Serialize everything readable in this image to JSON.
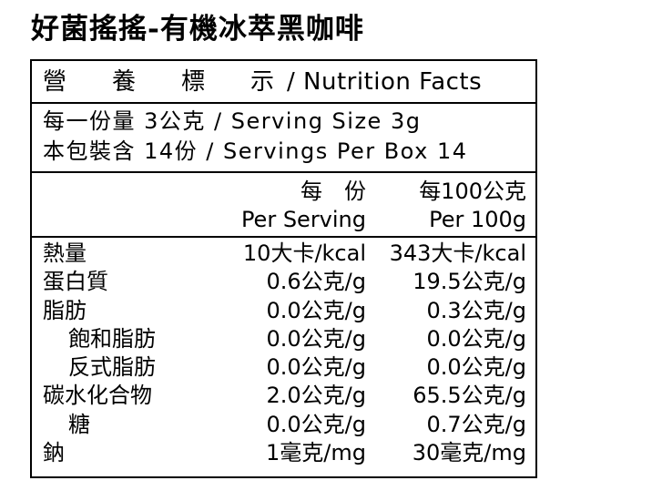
{
  "title": "好菌搖搖-有機冰萃黑咖啡",
  "header": {
    "zh_chars": [
      "營",
      "養",
      "標",
      "示"
    ],
    "en": "/ Nutrition Facts"
  },
  "serving": {
    "line1": "每一份量 3公克 / Serving Size 3g",
    "line2": "本包裝含 14份 / Servings Per Box 14"
  },
  "columns": {
    "per_serving_zh": "每　份",
    "per_serving_en": "Per Serving",
    "per_100g_zh": "每100公克",
    "per_100g_en": "Per 100g"
  },
  "rows": [
    {
      "label": "熱量",
      "indent": false,
      "per_serving": "10大卡/kcal",
      "per_100g": "343大卡/kcal"
    },
    {
      "label": "蛋白質",
      "indent": false,
      "per_serving": "0.6公克/g",
      "per_100g": "19.5公克/g"
    },
    {
      "label": "脂肪",
      "indent": false,
      "per_serving": "0.0公克/g",
      "per_100g": "0.3公克/g"
    },
    {
      "label": "飽和脂肪",
      "indent": true,
      "per_serving": "0.0公克/g",
      "per_100g": "0.0公克/g"
    },
    {
      "label": "反式脂肪",
      "indent": true,
      "per_serving": "0.0公克/g",
      "per_100g": "0.0公克/g"
    },
    {
      "label": "碳水化合物",
      "indent": false,
      "per_serving": "2.0公克/g",
      "per_100g": "65.5公克/g"
    },
    {
      "label": "糖",
      "indent": true,
      "per_serving": "0.0公克/g",
      "per_100g": "0.7公克/g"
    },
    {
      "label": "鈉",
      "indent": false,
      "per_serving": "1毫克/mg",
      "per_100g": "30毫克/mg"
    }
  ]
}
